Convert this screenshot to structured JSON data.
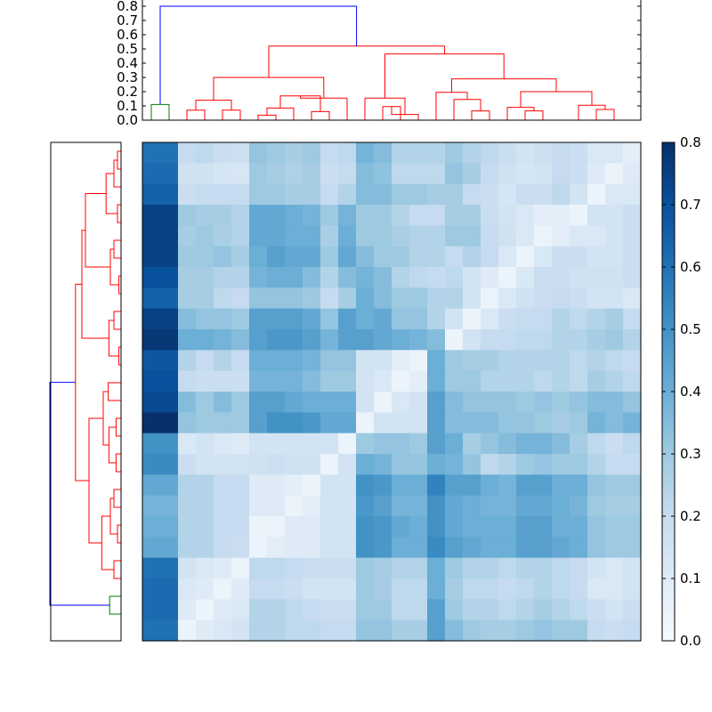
{
  "chart_data": {
    "type": "heatmap",
    "title": "",
    "n": 28,
    "colormap": "Blues",
    "colors": {
      "blues": [
        "#f7fbff",
        "#deebf7",
        "#c6dbef",
        "#9ecae1",
        "#6baed6",
        "#4292c6",
        "#2171b5",
        "#08519c",
        "#08306b"
      ],
      "dendro_main": "#ff0000",
      "dendro_link": "#0000ff",
      "dendro_pair": "#008000"
    },
    "colorbar": {
      "min": 0.0,
      "max": 0.8,
      "ticks": [
        0.0,
        0.1,
        0.2,
        0.3,
        0.4,
        0.5,
        0.6,
        0.7,
        0.8
      ],
      "tick_labels": [
        "0.0",
        "0.1",
        "0.2",
        "0.3",
        "0.4",
        "0.5",
        "0.6",
        "0.7",
        "0.8"
      ]
    },
    "top_dendrogram": {
      "ylim": [
        0,
        0.8
      ],
      "ticks": [
        0.0,
        0.1,
        0.2,
        0.3,
        0.4,
        0.5,
        0.6,
        0.7,
        0.8
      ],
      "tick_labels": [
        "0.0",
        "0.1",
        "0.2",
        "0.3",
        "0.4",
        "0.5",
        "0.6",
        "0.7",
        "0.8"
      ],
      "links": [
        {
          "a": 0.5,
          "ha": 0,
          "b": 1.5,
          "hb": 0,
          "h": 0.11,
          "color": "dendro_pair"
        },
        {
          "a": 2.5,
          "ha": 0,
          "b": 3.5,
          "hb": 0,
          "h": 0.07,
          "color": "dendro_main"
        },
        {
          "a": 4.5,
          "ha": 0,
          "b": 5.5,
          "hb": 0,
          "h": 0.07,
          "color": "dendro_main"
        },
        {
          "a": 3.0,
          "ha": 0.07,
          "b": 5.0,
          "hb": 0.07,
          "h": 0.14,
          "color": "dendro_main"
        },
        {
          "a": 6.5,
          "ha": 0,
          "b": 7.5,
          "hb": 0,
          "h": 0.035,
          "color": "dendro_main"
        },
        {
          "a": 7.0,
          "ha": 0.035,
          "b": 8.5,
          "hb": 0,
          "h": 0.085,
          "color": "dendro_main"
        },
        {
          "a": 9.5,
          "ha": 0,
          "b": 10.5,
          "hb": 0,
          "h": 0.06,
          "color": "dendro_main"
        },
        {
          "a": 7.75,
          "ha": 0.085,
          "b": 10.0,
          "hb": 0.06,
          "h": 0.17,
          "color": "dendro_main"
        },
        {
          "a": 8.875,
          "ha": 0.17,
          "b": 11.5,
          "hb": 0,
          "h": 0.155,
          "color": "dendro_main"
        },
        {
          "a": 4.0,
          "ha": 0.14,
          "b": 10.19,
          "hb": 0.155,
          "h": 0.3,
          "color": "dendro_main"
        },
        {
          "a": 13.5,
          "ha": 0,
          "b": 14.5,
          "hb": 0,
          "h": 0.095,
          "color": "dendro_main"
        },
        {
          "a": 14.0,
          "ha": 0.095,
          "b": 15.5,
          "hb": 0,
          "h": 0.04,
          "color": "dendro_main"
        },
        {
          "a": 12.5,
          "ha": 0,
          "b": 14.75,
          "hb": 0.04,
          "h": 0.155,
          "color": "dendro_main"
        },
        {
          "a": 18.5,
          "ha": 0,
          "b": 19.5,
          "hb": 0,
          "h": 0.065,
          "color": "dendro_main"
        },
        {
          "a": 17.5,
          "ha": 0,
          "b": 19.0,
          "hb": 0.065,
          "h": 0.145,
          "color": "dendro_main"
        },
        {
          "a": 16.5,
          "ha": 0,
          "b": 18.25,
          "hb": 0.145,
          "h": 0.195,
          "color": "dendro_main"
        },
        {
          "a": 21.5,
          "ha": 0,
          "b": 22.5,
          "hb": 0,
          "h": 0.065,
          "color": "dendro_main"
        },
        {
          "a": 20.5,
          "ha": 0,
          "b": 22.0,
          "hb": 0.065,
          "h": 0.09,
          "color": "dendro_main"
        },
        {
          "a": 25.5,
          "ha": 0,
          "b": 26.5,
          "hb": 0,
          "h": 0.075,
          "color": "dendro_main"
        },
        {
          "a": 24.5,
          "ha": 0,
          "b": 26.0,
          "hb": 0.075,
          "h": 0.105,
          "color": "dendro_main"
        },
        {
          "a": 21.25,
          "ha": 0.09,
          "b": 25.25,
          "hb": 0.105,
          "h": 0.2,
          "color": "dendro_main"
        },
        {
          "a": 17.375,
          "ha": 0.195,
          "b": 23.25,
          "hb": 0.2,
          "h": 0.29,
          "color": "dendro_main"
        },
        {
          "a": 13.625,
          "ha": 0.155,
          "b": 20.31,
          "hb": 0.29,
          "h": 0.465,
          "color": "dendro_main"
        },
        {
          "a": 7.1,
          "ha": 0.3,
          "b": 16.97,
          "hb": 0.465,
          "h": 0.52,
          "color": "dendro_main"
        },
        {
          "a": 1.0,
          "ha": 0.11,
          "b": 12.03,
          "hb": 0.52,
          "h": 0.8,
          "color": "dendro_link"
        }
      ]
    },
    "left_dendrogram": {
      "links": [
        {
          "a": 0.5,
          "ha": 0,
          "b": 1.5,
          "hb": 0,
          "h": 0.025,
          "color": "dendro_main"
        },
        {
          "a": 1.0,
          "ha": 0.025,
          "b": 2.5,
          "hb": 0,
          "h": 0.05,
          "color": "dendro_main"
        },
        {
          "a": 3.5,
          "ha": 0,
          "b": 4.5,
          "hb": 0,
          "h": 0.025,
          "color": "dendro_main"
        },
        {
          "a": 1.75,
          "ha": 0.05,
          "b": 4.0,
          "hb": 0.025,
          "h": 0.105,
          "color": "dendro_main"
        },
        {
          "a": 5.5,
          "ha": 0,
          "b": 6.5,
          "hb": 0,
          "h": 0.05,
          "color": "dendro_main"
        },
        {
          "a": 7.5,
          "ha": 0,
          "b": 8.5,
          "hb": 0,
          "h": 0.015,
          "color": "dendro_main"
        },
        {
          "a": 6.0,
          "ha": 0.05,
          "b": 8.0,
          "hb": 0.015,
          "h": 0.075,
          "color": "dendro_main"
        },
        {
          "a": 2.875,
          "ha": 0.105,
          "b": 7.0,
          "hb": 0.075,
          "h": 0.25,
          "color": "dendro_main"
        },
        {
          "a": 9.5,
          "ha": 0,
          "b": 10.5,
          "hb": 0,
          "h": 0.05,
          "color": "dendro_main"
        },
        {
          "a": 11.5,
          "ha": 0,
          "b": 12.5,
          "hb": 0,
          "h": 0.015,
          "color": "dendro_main"
        },
        {
          "a": 10.0,
          "ha": 0.05,
          "b": 12.0,
          "hb": 0.015,
          "h": 0.085,
          "color": "dendro_main"
        },
        {
          "a": 4.94,
          "ha": 0.25,
          "b": 11.0,
          "hb": 0.085,
          "h": 0.275,
          "color": "dendro_main"
        },
        {
          "a": 13.5,
          "ha": 0,
          "b": 14.5,
          "hb": 0,
          "h": 0.09,
          "color": "dendro_main"
        },
        {
          "a": 15.5,
          "ha": 0,
          "b": 16.5,
          "hb": 0,
          "h": 0.035,
          "color": "dendro_main"
        },
        {
          "a": 17.5,
          "ha": 0,
          "b": 18.5,
          "hb": 0,
          "h": 0.035,
          "color": "dendro_main"
        },
        {
          "a": 16.0,
          "ha": 0.035,
          "b": 18.0,
          "hb": 0.035,
          "h": 0.085,
          "color": "dendro_main"
        },
        {
          "a": 14.0,
          "ha": 0.09,
          "b": 17.0,
          "hb": 0.085,
          "h": 0.125,
          "color": "dendro_main"
        },
        {
          "a": 19.5,
          "ha": 0,
          "b": 20.5,
          "hb": 0,
          "h": 0.05,
          "color": "dendro_main"
        },
        {
          "a": 21.5,
          "ha": 0,
          "b": 22.5,
          "hb": 0,
          "h": 0.025,
          "color": "dendro_main"
        },
        {
          "a": 20.0,
          "ha": 0.05,
          "b": 22.0,
          "hb": 0.025,
          "h": 0.075,
          "color": "dendro_main"
        },
        {
          "a": 23.5,
          "ha": 0,
          "b": 24.5,
          "hb": 0,
          "h": 0.05,
          "color": "dendro_main"
        },
        {
          "a": 21.0,
          "ha": 0.075,
          "b": 24.0,
          "hb": 0.05,
          "h": 0.135,
          "color": "dendro_main"
        },
        {
          "a": 15.5,
          "ha": 0.125,
          "b": 22.5,
          "hb": 0.135,
          "h": 0.225,
          "color": "dendro_main"
        },
        {
          "a": 7.97,
          "ha": 0.275,
          "b": 19.0,
          "hb": 0.225,
          "h": 0.32,
          "color": "dendro_main"
        },
        {
          "a": 25.5,
          "ha": 0,
          "b": 26.5,
          "hb": 0,
          "h": 0.08,
          "color": "dendro_pair"
        },
        {
          "a": 13.48,
          "ha": 0.32,
          "b": 26.0,
          "hb": 0.08,
          "h": 0.5,
          "color": "dendro_link"
        }
      ]
    },
    "matrix": [
      [
        0.6,
        0.6,
        0.2,
        0.22,
        0.18,
        0.17,
        0.32,
        0.3,
        0.28,
        0.3,
        0.2,
        0.22,
        0.38,
        0.35,
        0.25,
        0.25,
        0.25,
        0.3,
        0.25,
        0.22,
        0.18,
        0.15,
        0.17,
        0.2,
        0.18,
        0.12,
        0.12,
        0.08
      ],
      [
        0.62,
        0.62,
        0.16,
        0.16,
        0.14,
        0.13,
        0.3,
        0.28,
        0.26,
        0.28,
        0.18,
        0.2,
        0.35,
        0.33,
        0.22,
        0.22,
        0.22,
        0.32,
        0.28,
        0.2,
        0.16,
        0.14,
        0.15,
        0.2,
        0.18,
        0.1,
        0.05,
        0.1
      ],
      [
        0.65,
        0.65,
        0.18,
        0.2,
        0.2,
        0.2,
        0.3,
        0.3,
        0.28,
        0.28,
        0.2,
        0.25,
        0.35,
        0.35,
        0.3,
        0.3,
        0.28,
        0.28,
        0.2,
        0.18,
        0.14,
        0.18,
        0.18,
        0.22,
        0.15,
        0.05,
        0.12,
        0.12
      ],
      [
        0.75,
        0.75,
        0.3,
        0.28,
        0.28,
        0.25,
        0.42,
        0.42,
        0.4,
        0.38,
        0.3,
        0.38,
        0.3,
        0.3,
        0.25,
        0.2,
        0.2,
        0.28,
        0.28,
        0.18,
        0.15,
        0.12,
        0.08,
        0.08,
        0.05,
        0.15,
        0.15,
        0.18
      ],
      [
        0.75,
        0.75,
        0.28,
        0.3,
        0.27,
        0.25,
        0.42,
        0.42,
        0.4,
        0.4,
        0.27,
        0.4,
        0.3,
        0.3,
        0.27,
        0.25,
        0.25,
        0.3,
        0.3,
        0.2,
        0.16,
        0.12,
        0.05,
        0.08,
        0.12,
        0.12,
        0.15,
        0.18
      ],
      [
        0.75,
        0.75,
        0.3,
        0.3,
        0.32,
        0.28,
        0.4,
        0.45,
        0.42,
        0.42,
        0.3,
        0.42,
        0.35,
        0.3,
        0.3,
        0.25,
        0.25,
        0.2,
        0.25,
        0.2,
        0.12,
        0.05,
        0.12,
        0.18,
        0.18,
        0.15,
        0.15,
        0.18
      ],
      [
        0.7,
        0.7,
        0.28,
        0.28,
        0.25,
        0.25,
        0.38,
        0.4,
        0.4,
        0.35,
        0.25,
        0.35,
        0.38,
        0.35,
        0.25,
        0.22,
        0.2,
        0.22,
        0.15,
        0.1,
        0.05,
        0.12,
        0.18,
        0.18,
        0.16,
        0.16,
        0.16,
        0.18
      ],
      [
        0.65,
        0.65,
        0.28,
        0.28,
        0.22,
        0.2,
        0.32,
        0.32,
        0.32,
        0.3,
        0.2,
        0.28,
        0.4,
        0.35,
        0.3,
        0.3,
        0.25,
        0.25,
        0.15,
        0.05,
        0.12,
        0.16,
        0.18,
        0.2,
        0.18,
        0.15,
        0.15,
        0.12
      ],
      [
        0.75,
        0.75,
        0.35,
        0.32,
        0.32,
        0.3,
        0.45,
        0.45,
        0.45,
        0.42,
        0.32,
        0.45,
        0.4,
        0.42,
        0.32,
        0.32,
        0.25,
        0.15,
        0.05,
        0.12,
        0.18,
        0.2,
        0.2,
        0.25,
        0.22,
        0.25,
        0.28,
        0.2
      ],
      [
        0.78,
        0.78,
        0.4,
        0.4,
        0.38,
        0.35,
        0.45,
        0.48,
        0.48,
        0.45,
        0.38,
        0.45,
        0.45,
        0.42,
        0.4,
        0.38,
        0.35,
        0.05,
        0.15,
        0.2,
        0.2,
        0.22,
        0.22,
        0.25,
        0.25,
        0.28,
        0.3,
        0.25
      ],
      [
        0.68,
        0.68,
        0.25,
        0.2,
        0.25,
        0.2,
        0.4,
        0.4,
        0.4,
        0.38,
        0.32,
        0.32,
        0.15,
        0.15,
        0.08,
        0.05,
        0.4,
        0.3,
        0.28,
        0.28,
        0.25,
        0.25,
        0.25,
        0.25,
        0.22,
        0.25,
        0.22,
        0.2
      ],
      [
        0.7,
        0.7,
        0.2,
        0.18,
        0.18,
        0.18,
        0.38,
        0.38,
        0.38,
        0.35,
        0.3,
        0.3,
        0.15,
        0.12,
        0.05,
        0.08,
        0.4,
        0.3,
        0.3,
        0.25,
        0.25,
        0.25,
        0.22,
        0.25,
        0.22,
        0.28,
        0.25,
        0.22
      ],
      [
        0.72,
        0.72,
        0.35,
        0.3,
        0.35,
        0.3,
        0.45,
        0.45,
        0.42,
        0.4,
        0.4,
        0.4,
        0.15,
        0.05,
        0.12,
        0.15,
        0.45,
        0.35,
        0.32,
        0.32,
        0.32,
        0.3,
        0.32,
        0.3,
        0.32,
        0.35,
        0.35,
        0.32
      ],
      [
        0.8,
        0.8,
        0.32,
        0.3,
        0.3,
        0.3,
        0.45,
        0.5,
        0.5,
        0.48,
        0.42,
        0.42,
        0.05,
        0.15,
        0.15,
        0.15,
        0.45,
        0.35,
        0.35,
        0.35,
        0.32,
        0.32,
        0.3,
        0.28,
        0.3,
        0.38,
        0.35,
        0.38
      ],
      [
        0.5,
        0.5,
        0.12,
        0.15,
        0.12,
        0.1,
        0.15,
        0.15,
        0.15,
        0.15,
        0.15,
        0.05,
        0.3,
        0.32,
        0.32,
        0.3,
        0.45,
        0.4,
        0.28,
        0.32,
        0.35,
        0.38,
        0.38,
        0.35,
        0.28,
        0.22,
        0.18,
        0.22
      ],
      [
        0.52,
        0.52,
        0.18,
        0.15,
        0.15,
        0.15,
        0.16,
        0.17,
        0.16,
        0.16,
        0.05,
        0.15,
        0.4,
        0.38,
        0.32,
        0.32,
        0.4,
        0.38,
        0.32,
        0.22,
        0.25,
        0.3,
        0.32,
        0.3,
        0.3,
        0.25,
        0.2,
        0.2
      ],
      [
        0.42,
        0.42,
        0.25,
        0.25,
        0.2,
        0.2,
        0.1,
        0.1,
        0.08,
        0.05,
        0.15,
        0.15,
        0.5,
        0.48,
        0.4,
        0.4,
        0.55,
        0.45,
        0.45,
        0.4,
        0.38,
        0.45,
        0.45,
        0.4,
        0.4,
        0.32,
        0.3,
        0.3
      ],
      [
        0.38,
        0.38,
        0.25,
        0.25,
        0.2,
        0.2,
        0.1,
        0.1,
        0.05,
        0.08,
        0.15,
        0.15,
        0.48,
        0.45,
        0.38,
        0.38,
        0.5,
        0.42,
        0.4,
        0.38,
        0.38,
        0.42,
        0.42,
        0.4,
        0.38,
        0.3,
        0.28,
        0.28
      ],
      [
        0.4,
        0.4,
        0.25,
        0.25,
        0.2,
        0.2,
        0.05,
        0.05,
        0.1,
        0.1,
        0.15,
        0.15,
        0.5,
        0.48,
        0.42,
        0.4,
        0.5,
        0.42,
        0.4,
        0.4,
        0.4,
        0.45,
        0.45,
        0.4,
        0.4,
        0.32,
        0.3,
        0.3
      ],
      [
        0.42,
        0.42,
        0.25,
        0.25,
        0.2,
        0.18,
        0.05,
        0.08,
        0.1,
        0.1,
        0.15,
        0.15,
        0.5,
        0.48,
        0.4,
        0.4,
        0.52,
        0.45,
        0.42,
        0.4,
        0.4,
        0.45,
        0.45,
        0.42,
        0.4,
        0.32,
        0.3,
        0.3
      ],
      [
        0.6,
        0.6,
        0.15,
        0.12,
        0.1,
        0.05,
        0.22,
        0.22,
        0.2,
        0.18,
        0.18,
        0.18,
        0.3,
        0.28,
        0.25,
        0.25,
        0.4,
        0.3,
        0.25,
        0.25,
        0.22,
        0.25,
        0.25,
        0.22,
        0.2,
        0.15,
        0.12,
        0.15
      ],
      [
        0.62,
        0.62,
        0.12,
        0.1,
        0.05,
        0.1,
        0.2,
        0.2,
        0.18,
        0.15,
        0.15,
        0.15,
        0.3,
        0.28,
        0.22,
        0.22,
        0.4,
        0.28,
        0.22,
        0.22,
        0.2,
        0.22,
        0.25,
        0.22,
        0.2,
        0.12,
        0.12,
        0.15
      ],
      [
        0.62,
        0.62,
        0.1,
        0.05,
        0.1,
        0.12,
        0.25,
        0.25,
        0.22,
        0.2,
        0.18,
        0.18,
        0.3,
        0.3,
        0.22,
        0.22,
        0.45,
        0.3,
        0.25,
        0.25,
        0.22,
        0.25,
        0.28,
        0.25,
        0.22,
        0.18,
        0.15,
        0.18
      ],
      [
        0.6,
        0.6,
        0.05,
        0.1,
        0.12,
        0.15,
        0.25,
        0.25,
        0.22,
        0.22,
        0.2,
        0.2,
        0.32,
        0.32,
        0.28,
        0.28,
        0.45,
        0.35,
        0.3,
        0.28,
        0.28,
        0.3,
        0.32,
        0.3,
        0.3,
        0.2,
        0.18,
        0.2
      ]
    ]
  }
}
